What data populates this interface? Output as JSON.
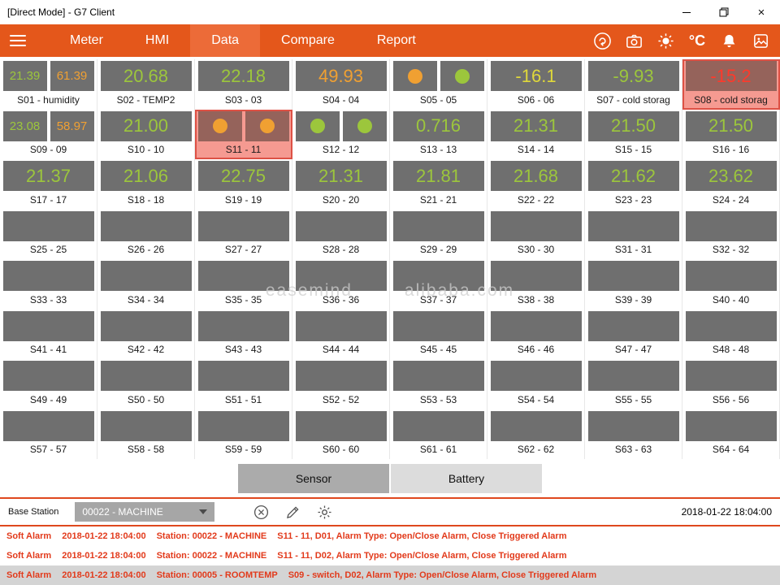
{
  "window": {
    "title": "[Direct Mode] - G7 Client"
  },
  "nav": {
    "tabs": [
      {
        "label": "Meter",
        "active": false
      },
      {
        "label": "HMI",
        "active": false
      },
      {
        "label": "Data",
        "active": true
      },
      {
        "label": "Compare",
        "active": false
      },
      {
        "label": "Report",
        "active": false
      }
    ],
    "unit_label": "°C"
  },
  "colors": {
    "green": "#9CC63C",
    "orange": "#F0A032",
    "yellow": "#DFD83A",
    "red": "#FF392B"
  },
  "watermark": {
    "left": "easemind",
    "right": "alibaba.com"
  },
  "tiles": [
    {
      "label": "S01 - humidity",
      "kind": "dual",
      "values": [
        "21.39",
        "61.39"
      ],
      "colors": [
        "green",
        "orange"
      ]
    },
    {
      "label": "S02 - TEMP2",
      "kind": "single",
      "values": [
        "20.68"
      ],
      "colors": [
        "green"
      ]
    },
    {
      "label": "S03 - 03",
      "kind": "single",
      "values": [
        "22.18"
      ],
      "colors": [
        "green"
      ]
    },
    {
      "label": "S04 - 04",
      "kind": "single",
      "values": [
        "49.93"
      ],
      "colors": [
        "orange"
      ]
    },
    {
      "label": "S05 - 05",
      "kind": "circles",
      "circles": [
        "orange",
        "green"
      ]
    },
    {
      "label": "S06 - 06",
      "kind": "single",
      "values": [
        "-16.1"
      ],
      "colors": [
        "yellow"
      ]
    },
    {
      "label": "S07 - cold storag",
      "kind": "single",
      "values": [
        "-9.93"
      ],
      "colors": [
        "green"
      ]
    },
    {
      "label": "S08 - cold storag",
      "kind": "single",
      "values": [
        "-15.2"
      ],
      "colors": [
        "red"
      ],
      "alarm": true
    },
    {
      "label": "S09 - 09",
      "kind": "dual",
      "values": [
        "23.08",
        "58.97"
      ],
      "colors": [
        "green",
        "orange"
      ]
    },
    {
      "label": "S10 - 10",
      "kind": "single",
      "values": [
        "21.00"
      ],
      "colors": [
        "green"
      ]
    },
    {
      "label": "S11 - 11",
      "kind": "circles",
      "circles": [
        "orange",
        "orange"
      ],
      "alarm": true
    },
    {
      "label": "S12 - 12",
      "kind": "circles",
      "circles": [
        "green",
        "green"
      ]
    },
    {
      "label": "S13 - 13",
      "kind": "single",
      "values": [
        "0.716"
      ],
      "colors": [
        "green"
      ]
    },
    {
      "label": "S14 - 14",
      "kind": "single",
      "values": [
        "21.31"
      ],
      "colors": [
        "green"
      ]
    },
    {
      "label": "S15 - 15",
      "kind": "single",
      "values": [
        "21.50"
      ],
      "colors": [
        "green"
      ]
    },
    {
      "label": "S16 - 16",
      "kind": "single",
      "values": [
        "21.50"
      ],
      "colors": [
        "green"
      ]
    },
    {
      "label": "S17 - 17",
      "kind": "single",
      "values": [
        "21.37"
      ],
      "colors": [
        "green"
      ]
    },
    {
      "label": "S18 - 18",
      "kind": "single",
      "values": [
        "21.06"
      ],
      "colors": [
        "green"
      ]
    },
    {
      "label": "S19 - 19",
      "kind": "single",
      "values": [
        "22.75"
      ],
      "colors": [
        "green"
      ]
    },
    {
      "label": "S20 - 20",
      "kind": "single",
      "values": [
        "21.31"
      ],
      "colors": [
        "green"
      ]
    },
    {
      "label": "S21 - 21",
      "kind": "single",
      "values": [
        "21.81"
      ],
      "colors": [
        "green"
      ]
    },
    {
      "label": "S22 - 22",
      "kind": "single",
      "values": [
        "21.68"
      ],
      "colors": [
        "green"
      ]
    },
    {
      "label": "S23 - 23",
      "kind": "single",
      "values": [
        "21.62"
      ],
      "colors": [
        "green"
      ]
    },
    {
      "label": "S24 - 24",
      "kind": "single",
      "values": [
        "23.62"
      ],
      "colors": [
        "green"
      ]
    },
    {
      "label": "S25 - 25",
      "kind": "empty"
    },
    {
      "label": "S26 - 26",
      "kind": "empty"
    },
    {
      "label": "S27 - 27",
      "kind": "empty"
    },
    {
      "label": "S28 - 28",
      "kind": "empty"
    },
    {
      "label": "S29 - 29",
      "kind": "empty"
    },
    {
      "label": "S30 - 30",
      "kind": "empty"
    },
    {
      "label": "S31 - 31",
      "kind": "empty"
    },
    {
      "label": "S32 - 32",
      "kind": "empty"
    },
    {
      "label": "S33 - 33",
      "kind": "empty"
    },
    {
      "label": "S34 - 34",
      "kind": "empty"
    },
    {
      "label": "S35 - 35",
      "kind": "empty"
    },
    {
      "label": "S36 - 36",
      "kind": "empty"
    },
    {
      "label": "S37 - 37",
      "kind": "empty"
    },
    {
      "label": "S38 - 38",
      "kind": "empty"
    },
    {
      "label": "S39 - 39",
      "kind": "empty"
    },
    {
      "label": "S40 - 40",
      "kind": "empty"
    },
    {
      "label": "S41 - 41",
      "kind": "empty"
    },
    {
      "label": "S42 - 42",
      "kind": "empty"
    },
    {
      "label": "S43 - 43",
      "kind": "empty"
    },
    {
      "label": "S44 - 44",
      "kind": "empty"
    },
    {
      "label": "S45 - 45",
      "kind": "empty"
    },
    {
      "label": "S46 - 46",
      "kind": "empty"
    },
    {
      "label": "S47 - 47",
      "kind": "empty"
    },
    {
      "label": "S48 - 48",
      "kind": "empty"
    },
    {
      "label": "S49 - 49",
      "kind": "empty"
    },
    {
      "label": "S50 - 50",
      "kind": "empty"
    },
    {
      "label": "S51 - 51",
      "kind": "empty"
    },
    {
      "label": "S52 - 52",
      "kind": "empty"
    },
    {
      "label": "S53 - 53",
      "kind": "empty"
    },
    {
      "label": "S54 - 54",
      "kind": "empty"
    },
    {
      "label": "S55 - 55",
      "kind": "empty"
    },
    {
      "label": "S56 - 56",
      "kind": "empty"
    },
    {
      "label": "S57 - 57",
      "kind": "empty"
    },
    {
      "label": "S58 - 58",
      "kind": "empty"
    },
    {
      "label": "S59 - 59",
      "kind": "empty"
    },
    {
      "label": "S60 - 60",
      "kind": "empty"
    },
    {
      "label": "S61 - 61",
      "kind": "empty"
    },
    {
      "label": "S62 - 62",
      "kind": "empty"
    },
    {
      "label": "S63 - 63",
      "kind": "empty"
    },
    {
      "label": "S64 - 64",
      "kind": "empty"
    }
  ],
  "footer": {
    "sensor_label": "Sensor",
    "battery_label": "Battery"
  },
  "base_station": {
    "label": "Base Station",
    "selected": "00022 - MACHINE",
    "timestamp": "2018-01-22 18:04:00"
  },
  "alarms": [
    {
      "type": "Soft Alarm",
      "time": "2018-01-22 18:04:00",
      "station": "Station: 00022 - MACHINE",
      "detail": "S11 - 11, D01, Alarm Type: Open/Close Alarm, Close Triggered Alarm",
      "highlight": false
    },
    {
      "type": "Soft Alarm",
      "time": "2018-01-22 18:04:00",
      "station": "Station: 00022 - MACHINE",
      "detail": "S11 - 11, D02, Alarm Type: Open/Close Alarm, Close Triggered Alarm",
      "highlight": false
    },
    {
      "type": "Soft Alarm",
      "time": "2018-01-22 18:04:00",
      "station": "Station: 00005 - ROOMTEMP",
      "detail": "S09 - switch, D02, Alarm Type: Open/Close Alarm, Close Triggered Alarm",
      "highlight": true
    }
  ]
}
